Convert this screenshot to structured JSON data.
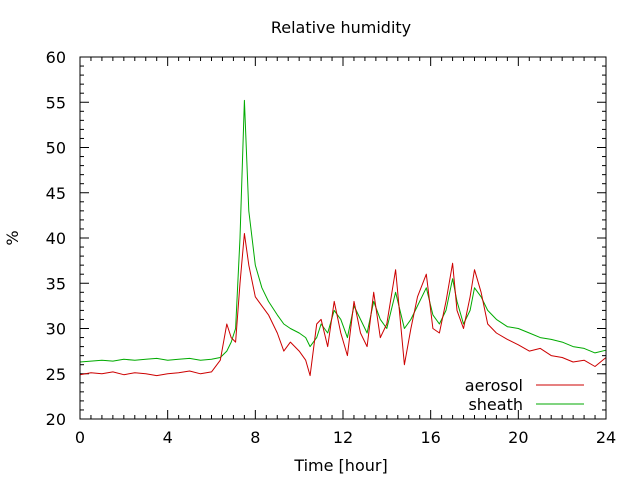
{
  "chart_data": {
    "type": "line",
    "title": "Relative humidity",
    "xlabel": "Time [hour]",
    "ylabel": "%",
    "xlim": [
      0,
      24
    ],
    "ylim": [
      20,
      60
    ],
    "xticks": [
      "0",
      "4",
      "8",
      "12",
      "16",
      "20",
      "24"
    ],
    "yticks": [
      "20",
      "25",
      "30",
      "35",
      "40",
      "45",
      "50",
      "55",
      "60"
    ],
    "legend_position": "bottom-right",
    "grid": false,
    "series": [
      {
        "name": "aerosol",
        "color": "#cc0000",
        "x": [
          0,
          0.5,
          1,
          1.5,
          2,
          2.5,
          3,
          3.5,
          4,
          4.5,
          5,
          5.5,
          6,
          6.4,
          6.7,
          6.9,
          7.1,
          7.3,
          7.5,
          7.7,
          8,
          8.3,
          8.6,
          9,
          9.3,
          9.6,
          10,
          10.3,
          10.5,
          10.8,
          11,
          11.3,
          11.6,
          11.9,
          12.2,
          12.5,
          12.8,
          13.1,
          13.4,
          13.7,
          14,
          14.4,
          14.8,
          15.1,
          15.4,
          15.8,
          16.1,
          16.4,
          16.7,
          17,
          17.2,
          17.5,
          17.8,
          18,
          18.3,
          18.6,
          19,
          19.5,
          20,
          20.5,
          21,
          21.5,
          22,
          22.5,
          23,
          23.5,
          24
        ],
        "y": [
          24.9,
          25.1,
          25,
          25.2,
          24.9,
          25.1,
          25,
          24.8,
          25,
          25.1,
          25.3,
          25,
          25.2,
          26.5,
          30.5,
          29,
          28.5,
          35,
          40.5,
          37,
          33.5,
          32.5,
          31.5,
          29.5,
          27.5,
          28.5,
          27.5,
          26.5,
          24.8,
          30.5,
          31,
          28,
          33,
          29.5,
          27,
          33,
          29.5,
          28,
          34,
          29,
          30.5,
          36.5,
          26,
          30,
          33.5,
          36,
          30,
          29.5,
          33,
          37.2,
          32,
          30,
          33.5,
          36.5,
          34,
          30.5,
          29.5,
          28.8,
          28.2,
          27.5,
          27.8,
          27,
          26.8,
          26.3,
          26.5,
          25.8,
          26.8
        ]
      },
      {
        "name": "sheath",
        "color": "#00aa00",
        "x": [
          0,
          0.5,
          1,
          1.5,
          2,
          2.5,
          3,
          3.5,
          4,
          4.5,
          5,
          5.5,
          6,
          6.4,
          6.7,
          6.9,
          7.1,
          7.3,
          7.5,
          7.7,
          8,
          8.3,
          8.6,
          9,
          9.3,
          9.6,
          10,
          10.3,
          10.5,
          10.8,
          11,
          11.3,
          11.6,
          11.9,
          12.2,
          12.5,
          12.8,
          13.1,
          13.4,
          13.7,
          14,
          14.4,
          14.8,
          15.1,
          15.4,
          15.8,
          16.1,
          16.4,
          16.7,
          17,
          17.2,
          17.5,
          17.8,
          18,
          18.3,
          18.6,
          19,
          19.5,
          20,
          20.5,
          21,
          21.5,
          22,
          22.5,
          23,
          23.5,
          24
        ],
        "y": [
          26.3,
          26.4,
          26.5,
          26.4,
          26.6,
          26.5,
          26.6,
          26.7,
          26.5,
          26.6,
          26.7,
          26.5,
          26.6,
          26.8,
          27.5,
          28.5,
          30,
          40,
          55.2,
          43,
          37,
          34.5,
          33,
          31.5,
          30.5,
          30,
          29.5,
          29,
          28,
          29,
          30.5,
          29.5,
          32,
          31,
          29,
          32.5,
          31,
          29.5,
          33,
          31,
          30,
          34,
          30,
          31,
          32.5,
          34.5,
          31.5,
          30.5,
          32,
          35.5,
          33,
          30.5,
          32,
          34.5,
          33.5,
          32,
          31,
          30.2,
          30,
          29.5,
          29,
          28.8,
          28.5,
          28,
          27.8,
          27.3,
          27.6
        ]
      }
    ]
  }
}
